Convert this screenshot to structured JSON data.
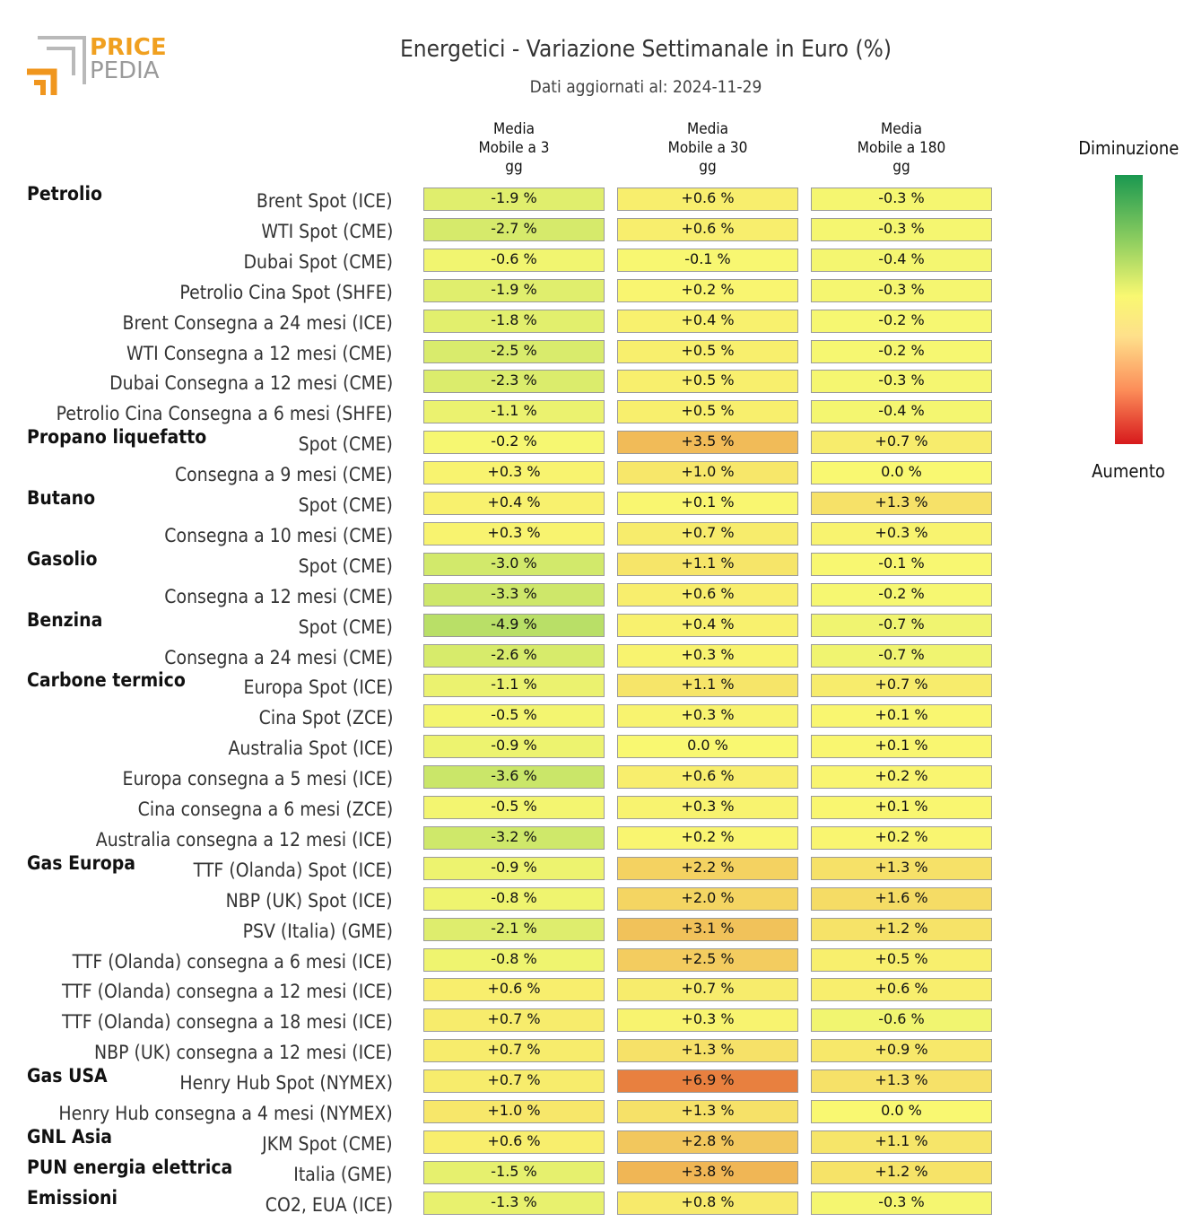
{
  "logo": {
    "line1": "PRICE",
    "line2": "PEDIA"
  },
  "title": "Energetici - Variazione Settimanale in Euro (%)",
  "subtitle": "Dati aggiornati al: 2024-11-29",
  "legend": {
    "top": "Diminuzione",
    "bottom": "Aumento"
  },
  "colors": {
    "decrease": "#1a9850",
    "neutral": "#f9f871",
    "increase": "#d7191c"
  },
  "chart_data": {
    "type": "table",
    "title": "Energetici - Variazione Settimanale in Euro (%)",
    "columns": [
      "Media\nMobile a 3\ngg",
      "Media\nMobile a 30\ngg",
      "Media\nMobile a 180\ngg"
    ],
    "rows": [
      {
        "category": "Petrolio",
        "label": "Brent Spot (ICE)",
        "values": [
          -1.9,
          0.6,
          -0.3
        ],
        "texts": [
          "-1.9 %",
          "+0.6 %",
          "-0.3 %"
        ]
      },
      {
        "category": "",
        "label": "WTI Spot (CME)",
        "values": [
          -2.7,
          0.6,
          -0.3
        ],
        "texts": [
          "-2.7 %",
          "+0.6 %",
          "-0.3 %"
        ]
      },
      {
        "category": "",
        "label": "Dubai Spot (CME)",
        "values": [
          -0.6,
          -0.1,
          -0.4
        ],
        "texts": [
          "-0.6 %",
          "-0.1 %",
          "-0.4 %"
        ]
      },
      {
        "category": "",
        "label": "Petrolio Cina Spot (SHFE)",
        "values": [
          -1.9,
          0.2,
          -0.3
        ],
        "texts": [
          "-1.9 %",
          "+0.2 %",
          "-0.3 %"
        ]
      },
      {
        "category": "",
        "label": "Brent Consegna a 24 mesi (ICE)",
        "values": [
          -1.8,
          0.4,
          -0.2
        ],
        "texts": [
          "-1.8 %",
          "+0.4 %",
          "-0.2 %"
        ]
      },
      {
        "category": "",
        "label": "WTI Consegna a 12 mesi (CME)",
        "values": [
          -2.5,
          0.5,
          -0.2
        ],
        "texts": [
          "-2.5 %",
          "+0.5 %",
          "-0.2 %"
        ]
      },
      {
        "category": "",
        "label": "Dubai Consegna a 12 mesi (CME)",
        "values": [
          -2.3,
          0.5,
          -0.3
        ],
        "texts": [
          "-2.3 %",
          "+0.5 %",
          "-0.3 %"
        ]
      },
      {
        "category": "",
        "label": "Petrolio Cina Consegna a 6 mesi (SHFE)",
        "values": [
          -1.1,
          0.5,
          -0.4
        ],
        "texts": [
          "-1.1 %",
          "+0.5 %",
          "-0.4 %"
        ]
      },
      {
        "category": "Propano liquefatto",
        "label": "Spot (CME)",
        "values": [
          -0.2,
          3.5,
          0.7
        ],
        "texts": [
          "-0.2 %",
          "+3.5 %",
          "+0.7 %"
        ]
      },
      {
        "category": "",
        "label": "Consegna a 9 mesi (CME)",
        "values": [
          0.3,
          1.0,
          0.0
        ],
        "texts": [
          "+0.3 %",
          "+1.0 %",
          "0.0 %"
        ]
      },
      {
        "category": "Butano",
        "label": "Spot (CME)",
        "values": [
          0.4,
          0.1,
          1.3
        ],
        "texts": [
          "+0.4 %",
          "+0.1 %",
          "+1.3 %"
        ]
      },
      {
        "category": "",
        "label": "Consegna a 10 mesi (CME)",
        "values": [
          0.3,
          0.7,
          0.3
        ],
        "texts": [
          "+0.3 %",
          "+0.7 %",
          "+0.3 %"
        ]
      },
      {
        "category": "Gasolio",
        "label": "Spot (CME)",
        "values": [
          -3.0,
          1.1,
          -0.1
        ],
        "texts": [
          "-3.0 %",
          "+1.1 %",
          "-0.1 %"
        ]
      },
      {
        "category": "",
        "label": "Consegna a 12 mesi (CME)",
        "values": [
          -3.3,
          0.6,
          -0.2
        ],
        "texts": [
          "-3.3 %",
          "+0.6 %",
          "-0.2 %"
        ]
      },
      {
        "category": "Benzina",
        "label": "Spot (CME)",
        "values": [
          -4.9,
          0.4,
          -0.7
        ],
        "texts": [
          "-4.9 %",
          "+0.4 %",
          "-0.7 %"
        ]
      },
      {
        "category": "",
        "label": "Consegna a 24 mesi (CME)",
        "values": [
          -2.6,
          0.3,
          -0.7
        ],
        "texts": [
          "-2.6 %",
          "+0.3 %",
          "-0.7 %"
        ]
      },
      {
        "category": "Carbone termico",
        "label": "Europa Spot (ICE)",
        "values": [
          -1.1,
          1.1,
          0.7
        ],
        "texts": [
          "-1.1 %",
          "+1.1 %",
          "+0.7 %"
        ]
      },
      {
        "category": "",
        "label": "Cina Spot (ZCE)",
        "values": [
          -0.5,
          0.3,
          0.1
        ],
        "texts": [
          "-0.5 %",
          "+0.3 %",
          "+0.1 %"
        ]
      },
      {
        "category": "",
        "label": "Australia Spot (ICE)",
        "values": [
          -0.9,
          0.0,
          0.1
        ],
        "texts": [
          "-0.9 %",
          "0.0 %",
          "+0.1 %"
        ]
      },
      {
        "category": "",
        "label": "Europa consegna a 5 mesi (ICE)",
        "values": [
          -3.6,
          0.6,
          0.2
        ],
        "texts": [
          "-3.6 %",
          "+0.6 %",
          "+0.2 %"
        ]
      },
      {
        "category": "",
        "label": "Cina consegna a 6 mesi (ZCE)",
        "values": [
          -0.5,
          0.3,
          0.1
        ],
        "texts": [
          "-0.5 %",
          "+0.3 %",
          "+0.1 %"
        ]
      },
      {
        "category": "",
        "label": "Australia consegna a 12 mesi (ICE)",
        "values": [
          -3.2,
          0.2,
          0.2
        ],
        "texts": [
          "-3.2 %",
          "+0.2 %",
          "+0.2 %"
        ]
      },
      {
        "category": "Gas Europa",
        "label": "TTF (Olanda) Spot (ICE)",
        "values": [
          -0.9,
          2.2,
          1.3
        ],
        "texts": [
          "-0.9 %",
          "+2.2 %",
          "+1.3 %"
        ]
      },
      {
        "category": "",
        "label": "NBP (UK) Spot (ICE)",
        "values": [
          -0.8,
          2.0,
          1.6
        ],
        "texts": [
          "-0.8 %",
          "+2.0 %",
          "+1.6 %"
        ]
      },
      {
        "category": "",
        "label": "PSV (Italia) (GME)",
        "values": [
          -2.1,
          3.1,
          1.2
        ],
        "texts": [
          "-2.1 %",
          "+3.1 %",
          "+1.2 %"
        ]
      },
      {
        "category": "",
        "label": "TTF (Olanda) consegna a 6 mesi (ICE)",
        "values": [
          -0.8,
          2.5,
          0.5
        ],
        "texts": [
          "-0.8 %",
          "+2.5 %",
          "+0.5 %"
        ]
      },
      {
        "category": "",
        "label": "TTF (Olanda) consegna a 12 mesi (ICE)",
        "values": [
          0.6,
          0.7,
          0.6
        ],
        "texts": [
          "+0.6 %",
          "+0.7 %",
          "+0.6 %"
        ]
      },
      {
        "category": "",
        "label": "TTF (Olanda) consegna a 18 mesi (ICE)",
        "values": [
          0.7,
          0.3,
          -0.6
        ],
        "texts": [
          "+0.7 %",
          "+0.3 %",
          "-0.6 %"
        ]
      },
      {
        "category": "",
        "label": "NBP (UK) consegna a 12 mesi (ICE)",
        "values": [
          0.7,
          1.3,
          0.9
        ],
        "texts": [
          "+0.7 %",
          "+1.3 %",
          "+0.9 %"
        ]
      },
      {
        "category": "Gas USA",
        "label": "Henry Hub Spot (NYMEX)",
        "values": [
          0.7,
          6.9,
          1.3
        ],
        "texts": [
          "+0.7 %",
          "+6.9 %",
          "+1.3 %"
        ]
      },
      {
        "category": "",
        "label": "Henry Hub consegna a 4 mesi (NYMEX)",
        "values": [
          1.0,
          1.3,
          0.0
        ],
        "texts": [
          "+1.0 %",
          "+1.3 %",
          "0.0 %"
        ]
      },
      {
        "category": "GNL Asia",
        "label": "JKM Spot (CME)",
        "values": [
          0.6,
          2.8,
          1.1
        ],
        "texts": [
          "+0.6 %",
          "+2.8 %",
          "+1.1 %"
        ]
      },
      {
        "category": "PUN energia elettrica",
        "label": "Italia (GME)",
        "values": [
          -1.5,
          3.8,
          1.2
        ],
        "texts": [
          "-1.5 %",
          "+3.8 %",
          "+1.2 %"
        ]
      },
      {
        "category": "Emissioni",
        "label": "CO2, EUA (ICE)",
        "values": [
          -1.3,
          0.8,
          -0.3
        ],
        "texts": [
          "-1.3 %",
          "+0.8 %",
          "-0.3 %"
        ]
      }
    ]
  }
}
